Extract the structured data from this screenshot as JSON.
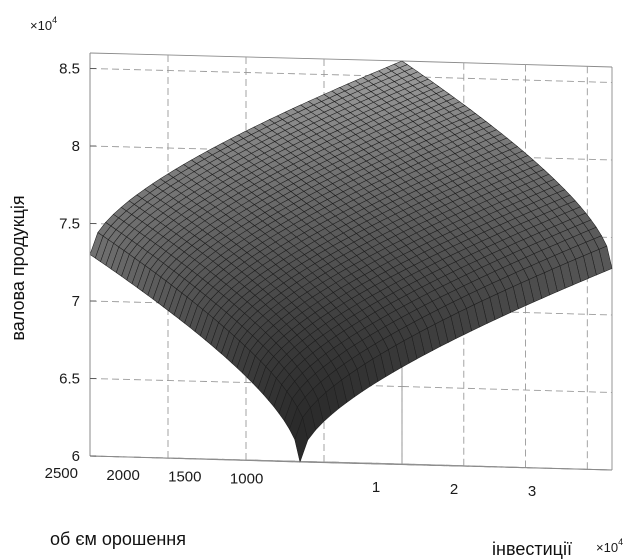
{
  "chart_data": {
    "type": "surface",
    "title": "",
    "xlabel": "інвестиції",
    "ylabel": "об єм орошення",
    "zlabel": "валова продукція",
    "x_multiplier": "×10",
    "x_multiplier_exp": "4",
    "z_multiplier": "×10",
    "z_multiplier_exp": "4",
    "x_range": [
      0,
      40000
    ],
    "y_range": [
      800,
      2500
    ],
    "z_range": [
      60000,
      86000
    ],
    "x_ticks": [
      10000,
      20000,
      30000
    ],
    "x_tick_labels": [
      "1",
      "2",
      "3"
    ],
    "y_ticks": [
      1000,
      1500,
      2000,
      2500
    ],
    "y_tick_labels": [
      "1000",
      "1500",
      "2000",
      "2500"
    ],
    "z_ticks": [
      60000,
      65000,
      70000,
      75000,
      80000,
      85000
    ],
    "z_tick_labels": [
      "6",
      "6.5",
      "7",
      "7.5",
      "8",
      "8.5"
    ],
    "grid": true,
    "surface_samples": [
      {
        "x": 0,
        "y": 800,
        "z": 60000
      },
      {
        "x": 0,
        "y": 2500,
        "z": 73000
      },
      {
        "x": 40000,
        "y": 800,
        "z": 73000
      },
      {
        "x": 40000,
        "y": 2500,
        "z": 86000
      }
    ],
    "surface_color": "#555555",
    "mesh_color": "#1e1e1e",
    "mesh_divisions": 40
  }
}
